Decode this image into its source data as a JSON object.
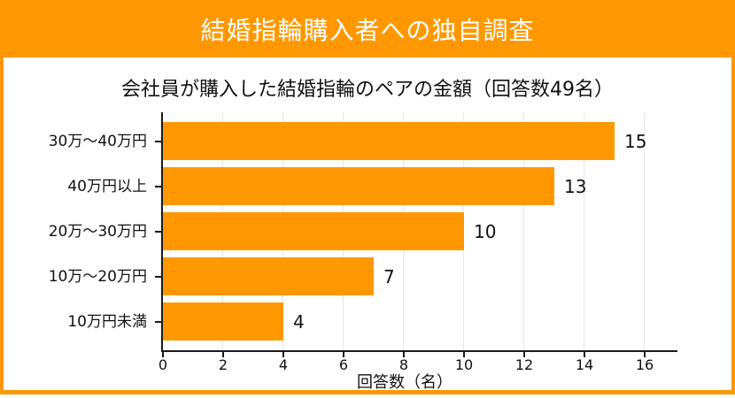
{
  "banner": {
    "title": "結婚指輪購入者への独自調査"
  },
  "colors": {
    "accent": "#ff9800",
    "bar": "#ff9800",
    "grid": "#e7e7e7",
    "axis": "#1a1a1a",
    "banner_text": "#ffffff",
    "panel_bg": "#ffffff"
  },
  "chart_data": {
    "type": "bar",
    "orientation": "horizontal",
    "title": "会社員が購入した結婚指輪のペアの金額（回答数49名）",
    "categories": [
      "30万〜40万円",
      "40万円以上",
      "20万〜30万円",
      "10万〜20万円",
      "10万円未満"
    ],
    "values": [
      15,
      13,
      10,
      7,
      4
    ],
    "value_labels": [
      "15",
      "13",
      "10",
      "7",
      "4"
    ],
    "xlabel": "回答数（名）",
    "xticks": [
      0,
      2,
      4,
      6,
      8,
      10,
      12,
      14,
      16
    ],
    "xtick_labels": [
      "0",
      "2",
      "4",
      "6",
      "8",
      "10",
      "12",
      "14",
      "16"
    ],
    "xlim": [
      0,
      17
    ],
    "grid": true,
    "legend": "none",
    "total_responses": 49
  }
}
